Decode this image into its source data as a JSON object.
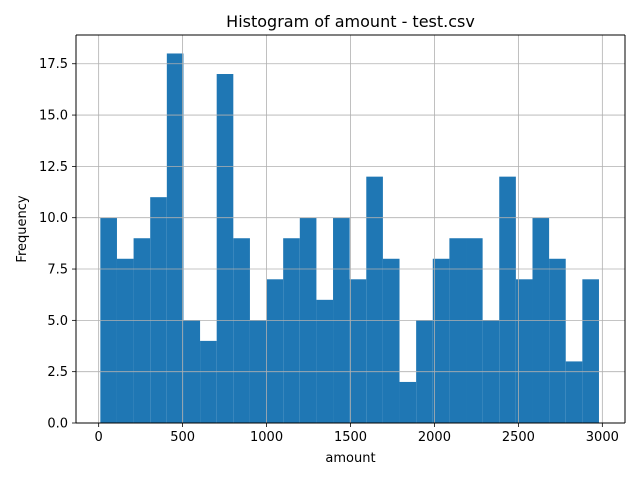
{
  "chart_data": {
    "type": "bar",
    "title": "Histogram of amount - test.csv",
    "xlabel": "amount",
    "ylabel": "Frequency",
    "grid": true,
    "bar_color": "#1f77b4",
    "xlim": [
      -135,
      3135
    ],
    "ylim": [
      0,
      18.9
    ],
    "x_ticks": [
      0,
      500,
      1000,
      1500,
      2000,
      2500,
      3000
    ],
    "x_tick_labels": [
      "0",
      "500",
      "1000",
      "1500",
      "2000",
      "2500",
      "3000"
    ],
    "y_ticks": [
      0,
      2.5,
      5,
      7.5,
      10,
      12.5,
      15,
      17.5
    ],
    "y_tick_labels": [
      "0.0",
      "2.5",
      "5.0",
      "7.5",
      "10.0",
      "12.5",
      "15.0",
      "17.5"
    ],
    "bins": [
      {
        "x0": 10,
        "x1": 109,
        "count": 10
      },
      {
        "x0": 109,
        "x1": 208,
        "count": 8
      },
      {
        "x0": 208,
        "x1": 307,
        "count": 9
      },
      {
        "x0": 307,
        "x1": 406,
        "count": 11
      },
      {
        "x0": 406,
        "x1": 505,
        "count": 18
      },
      {
        "x0": 505,
        "x1": 604,
        "count": 5
      },
      {
        "x0": 604,
        "x1": 703,
        "count": 4
      },
      {
        "x0": 703,
        "x1": 802,
        "count": 17
      },
      {
        "x0": 802,
        "x1": 901,
        "count": 9
      },
      {
        "x0": 901,
        "x1": 1000,
        "count": 5
      },
      {
        "x0": 1000,
        "x1": 1099,
        "count": 7
      },
      {
        "x0": 1099,
        "x1": 1198,
        "count": 9
      },
      {
        "x0": 1198,
        "x1": 1297,
        "count": 10
      },
      {
        "x0": 1297,
        "x1": 1396,
        "count": 6
      },
      {
        "x0": 1396,
        "x1": 1495,
        "count": 10
      },
      {
        "x0": 1495,
        "x1": 1594,
        "count": 7
      },
      {
        "x0": 1594,
        "x1": 1693,
        "count": 12
      },
      {
        "x0": 1693,
        "x1": 1792,
        "count": 8
      },
      {
        "x0": 1792,
        "x1": 1891,
        "count": 2
      },
      {
        "x0": 1891,
        "x1": 1990,
        "count": 5
      },
      {
        "x0": 1990,
        "x1": 2089,
        "count": 8
      },
      {
        "x0": 2089,
        "x1": 2188,
        "count": 9
      },
      {
        "x0": 2188,
        "x1": 2287,
        "count": 9
      },
      {
        "x0": 2287,
        "x1": 2386,
        "count": 5
      },
      {
        "x0": 2386,
        "x1": 2485,
        "count": 12
      },
      {
        "x0": 2485,
        "x1": 2584,
        "count": 7
      },
      {
        "x0": 2584,
        "x1": 2683,
        "count": 10
      },
      {
        "x0": 2683,
        "x1": 2782,
        "count": 8
      },
      {
        "x0": 2782,
        "x1": 2881,
        "count": 3
      },
      {
        "x0": 2881,
        "x1": 2980,
        "count": 7
      }
    ]
  }
}
